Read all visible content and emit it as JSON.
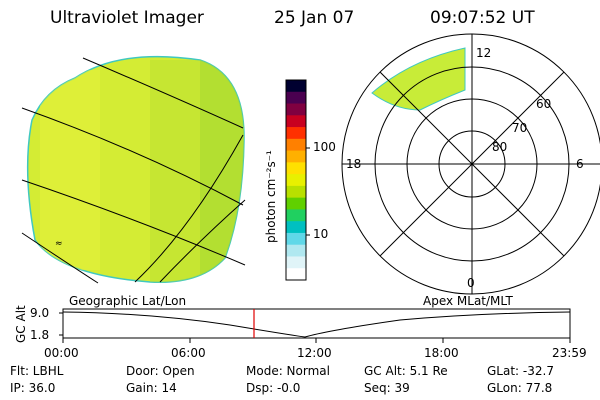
{
  "header": {
    "title": "Ultraviolet Imager",
    "date": "25 Jan 07",
    "time": "09:07:52 UT"
  },
  "colorbar": {
    "unit_label": "photon cm⁻²s⁻¹",
    "ticks": [
      "100",
      "10"
    ],
    "colors": [
      "#000030",
      "#4a0050",
      "#800040",
      "#c80020",
      "#ff3000",
      "#ff8000",
      "#ffb000",
      "#ffe000",
      "#e8f000",
      "#b8e000",
      "#60d000",
      "#20d060",
      "#00c0c0",
      "#60d8e8",
      "#b0e8f0",
      "#e0f4f8",
      "#ffffff"
    ]
  },
  "polar": {
    "mlt_labels": [
      "12",
      "18",
      "6",
      "0"
    ],
    "lat_labels": [
      "60",
      "70",
      "80"
    ]
  },
  "timeline": {
    "ylabel": "GC Alt",
    "yticks": [
      "9.0",
      "1.8"
    ],
    "left_label": "Geographic Lat/Lon",
    "right_label": "Apex MLat/MLT",
    "xticks": [
      "00:00",
      "06:00",
      "12:00",
      "18:00",
      "23:59"
    ],
    "cursor_time": "09:07:52"
  },
  "info": {
    "filter": "Flt: LBHL",
    "ip": "IP: 36.0",
    "door": "Door: Open",
    "gain": "Gain: 14",
    "mode": "Mode: Normal",
    "dsp": "Dsp:   -0.0",
    "gc_alt": "GC Alt: 5.1 Re",
    "seq": "Seq: 39",
    "glat": "GLat: -32.7",
    "glon": "GLon:  77.8"
  },
  "colors": {
    "image_fill": "#d8f030",
    "cursor": "#e00000"
  }
}
